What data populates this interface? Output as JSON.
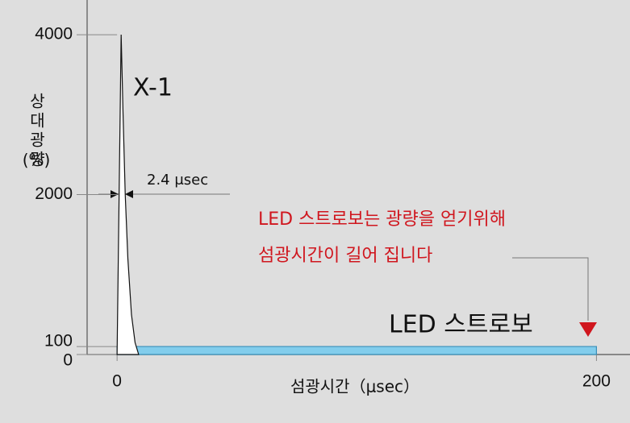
{
  "chart_data": {
    "type": "area",
    "y_label": "상대광량",
    "y_label_unit": "(%)",
    "x_label": "섬광시간（μsec）",
    "series": [
      {
        "name": "X-1",
        "color": "#ffffff",
        "x": [
          0,
          1.7,
          2.5,
          3.4,
          4.5,
          6,
          7.5,
          9
        ],
        "values": [
          0,
          4000,
          3000,
          2000,
          1200,
          500,
          150,
          0
        ]
      },
      {
        "name": "LED 스트로보",
        "color": "#82cdec",
        "x": [
          0,
          200
        ],
        "values": [
          100,
          100
        ]
      }
    ],
    "xlim": [
      -12.5,
      214
    ],
    "xticks": [
      0,
      200
    ],
    "ylim": [
      0,
      4434
    ],
    "yticks": [
      0,
      100,
      2000,
      4000
    ],
    "width_annotation": "2.4 μsec",
    "note": [
      "LED 스트로보는 광량을 얻기위해",
      "섬광시간이 길어 집니다"
    ],
    "note_color": "#d0161e"
  }
}
